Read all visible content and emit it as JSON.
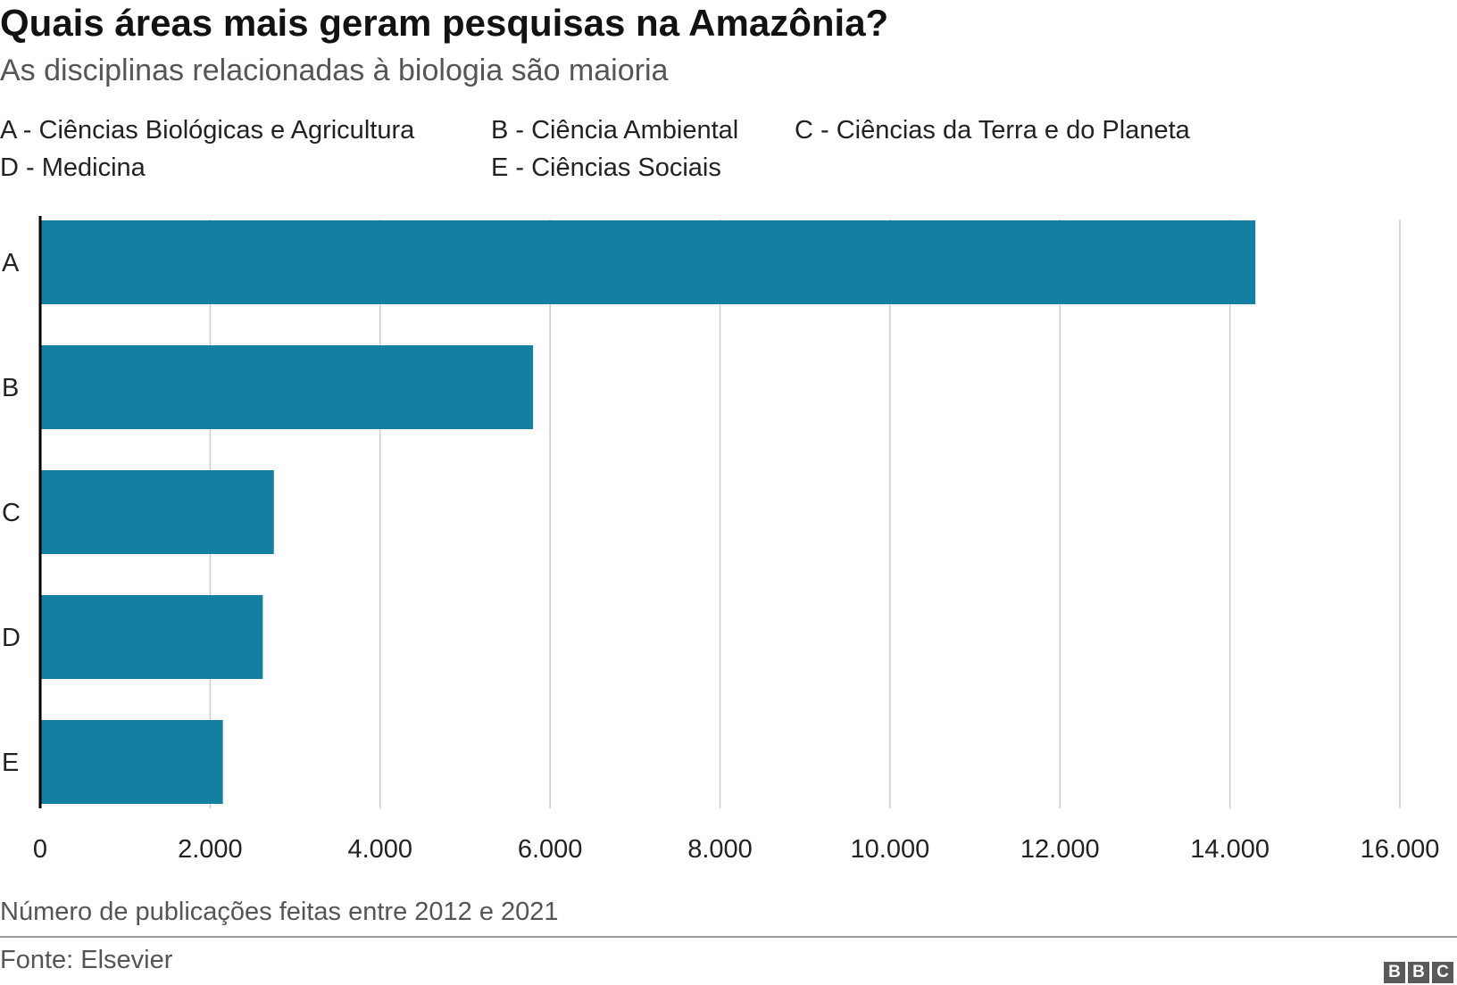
{
  "title": "Quais áreas mais geram pesquisas na Amazônia?",
  "subtitle": "As disciplinas relacionadas à biologia são maioria",
  "legend": [
    "A - Ciências Biológicas e Agricultura",
    "B - Ciência Ambiental",
    "C - Ciências da Terra e do Planeta",
    "D - Medicina",
    "E - Ciências Sociais"
  ],
  "xlabel": "Número de publicações feitas entre 2012 e 2021",
  "source": "Fonte: Elsevier",
  "logo": [
    "B",
    "B",
    "C"
  ],
  "colors": {
    "bar": "#1380A1",
    "grid": "#cccccc",
    "axis": "#000000"
  },
  "chart_data": {
    "type": "bar",
    "orientation": "horizontal",
    "categories": [
      "A",
      "B",
      "C",
      "D",
      "E"
    ],
    "values": [
      14300,
      5800,
      2750,
      2620,
      2150
    ],
    "xlim": [
      0,
      16000
    ],
    "xticks": [
      0,
      2000,
      4000,
      6000,
      8000,
      10000,
      12000,
      14000,
      16000
    ],
    "xtick_labels": [
      "0",
      "2.000",
      "4.000",
      "6.000",
      "8.000",
      "10.000",
      "12.000",
      "14.000",
      "16.000"
    ],
    "xlabel": "Número de publicações feitas entre 2012 e 2021",
    "grid": true
  }
}
